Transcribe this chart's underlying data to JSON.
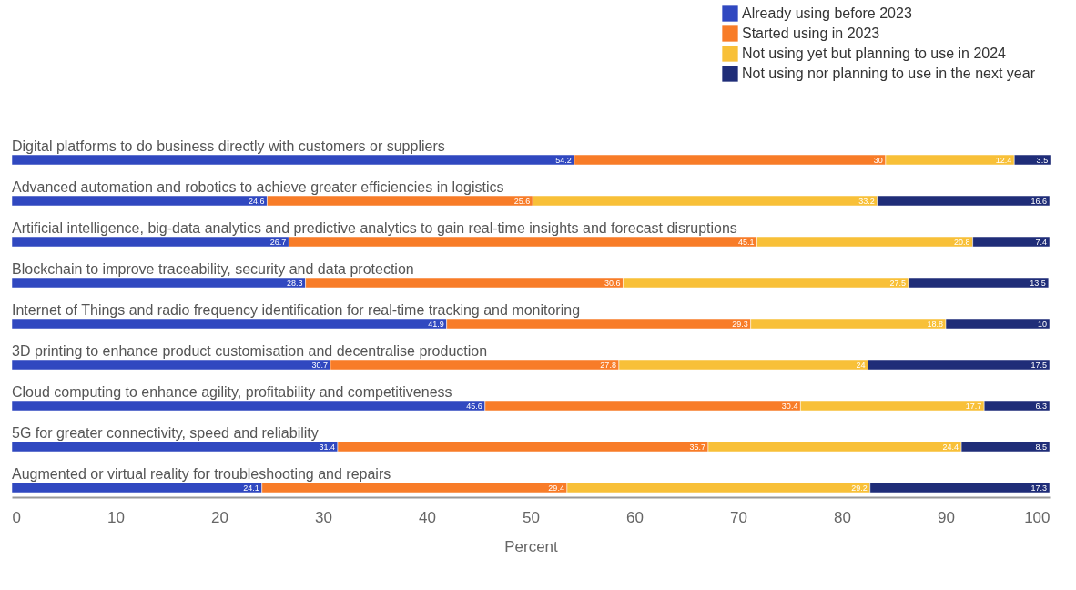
{
  "chart_data": {
    "type": "bar",
    "orientation": "horizontal",
    "stacked": true,
    "xlabel": "Percent",
    "categories": [
      "Digital platforms to do business directly with customers or suppliers",
      "Advanced automation and robotics to achieve greater efficiencies in logistics",
      "Artificial intelligence, big-data analytics and predictive analytics to gain real-time insights and forecast disruptions",
      "Blockchain to improve traceability, security and data protection",
      "Internet of Things and radio frequency identification for real-time tracking and monitoring",
      "3D printing to enhance product customisation and decentralise production",
      "Cloud computing to enhance agility, profitability and competitiveness",
      "5G for greater connectivity, speed and reliability",
      "Augmented or virtual reality for troubleshooting and repairs"
    ],
    "series": [
      {
        "name": "Already using before 2023",
        "color": "#3048c0",
        "values": [
          54.2,
          24.6,
          26.7,
          28.3,
          41.9,
          30.7,
          45.6,
          31.4,
          24.1
        ]
      },
      {
        "name": "Started using in 2023",
        "color": "#f87c28",
        "values": [
          30,
          25.6,
          45.1,
          30.6,
          29.3,
          27.8,
          30.4,
          35.7,
          29.4
        ]
      },
      {
        "name": "Not using yet but planning to use in 2024",
        "color": "#f8c038",
        "values": [
          12.4,
          33.2,
          20.8,
          27.5,
          18.8,
          24,
          17.7,
          24.4,
          29.2
        ]
      },
      {
        "name": "Not using nor planning to use in the next year",
        "color": "#1f2d78",
        "values": [
          3.5,
          16.6,
          7.4,
          13.5,
          10,
          17.5,
          6.3,
          8.5,
          17.3
        ]
      }
    ],
    "xlim": [
      0,
      100
    ],
    "xticks": [
      0,
      10,
      20,
      30,
      40,
      50,
      60,
      70,
      80,
      90,
      100
    ],
    "data_labels": true,
    "legend": "top right",
    "grid": false
  }
}
